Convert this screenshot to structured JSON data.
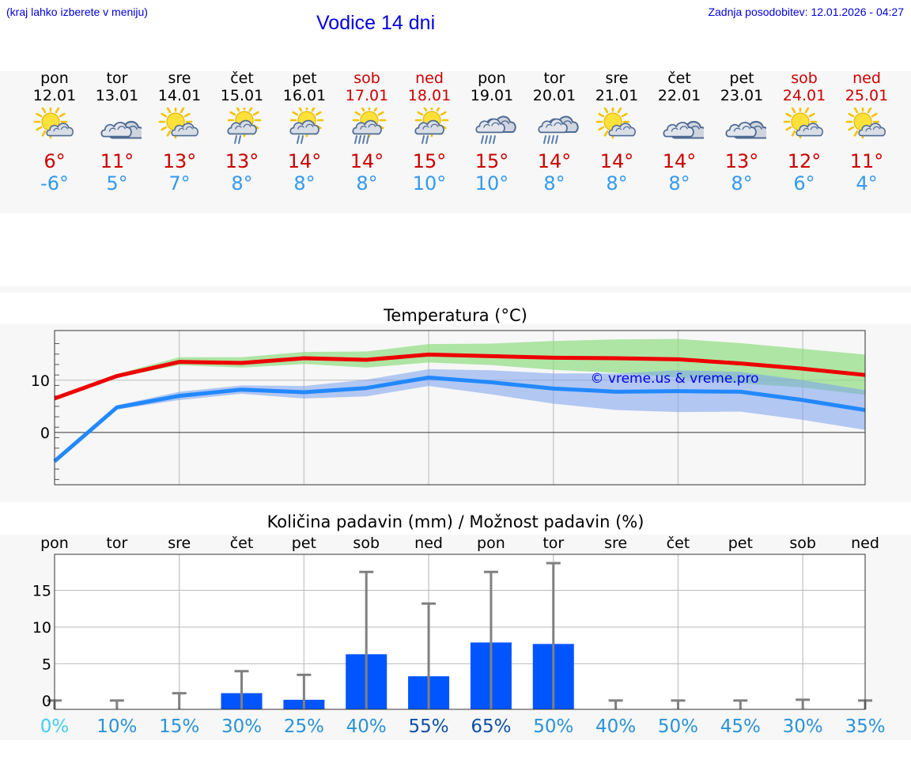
{
  "header": {
    "left_note": "(kraj lahko izberete v meniju)",
    "title": "Vodice 14 dni",
    "updated": "Zadnja posodobitev: 12.01.2026 - 04:27"
  },
  "days": [
    {
      "name": "pon",
      "date": "12.01",
      "weekend": false,
      "icon": "sun-cloud-icon",
      "tmax": "6°",
      "tmin": "-6°"
    },
    {
      "name": "tor",
      "date": "13.01",
      "weekend": false,
      "icon": "cloudy-icon",
      "tmax": "11°",
      "tmin": "5°"
    },
    {
      "name": "sre",
      "date": "14.01",
      "weekend": false,
      "icon": "sun-cloud-icon",
      "tmax": "13°",
      "tmin": "7°"
    },
    {
      "name": "čet",
      "date": "15.01",
      "weekend": false,
      "icon": "sun-cloud-light-rain-icon",
      "tmax": "13°",
      "tmin": "8°"
    },
    {
      "name": "pet",
      "date": "16.01",
      "weekend": false,
      "icon": "sun-cloud-light-rain-icon",
      "tmax": "14°",
      "tmin": "8°"
    },
    {
      "name": "sob",
      "date": "17.01",
      "weekend": true,
      "icon": "sun-cloud-rain-icon",
      "tmax": "14°",
      "tmin": "8°"
    },
    {
      "name": "ned",
      "date": "18.01",
      "weekend": true,
      "icon": "sun-cloud-light-rain-icon",
      "tmax": "15°",
      "tmin": "10°"
    },
    {
      "name": "pon",
      "date": "19.01",
      "weekend": false,
      "icon": "cloud-rain-icon",
      "tmax": "15°",
      "tmin": "10°"
    },
    {
      "name": "tor",
      "date": "20.01",
      "weekend": false,
      "icon": "cloud-rain-icon",
      "tmax": "14°",
      "tmin": "8°"
    },
    {
      "name": "sre",
      "date": "21.01",
      "weekend": false,
      "icon": "sun-cloud-icon",
      "tmax": "14°",
      "tmin": "8°"
    },
    {
      "name": "čet",
      "date": "22.01",
      "weekend": false,
      "icon": "cloudy-icon",
      "tmax": "14°",
      "tmin": "8°"
    },
    {
      "name": "pet",
      "date": "23.01",
      "weekend": false,
      "icon": "cloudy-icon",
      "tmax": "13°",
      "tmin": "8°"
    },
    {
      "name": "sob",
      "date": "24.01",
      "weekend": true,
      "icon": "sun-cloud-icon",
      "tmax": "12°",
      "tmin": "6°"
    },
    {
      "name": "ned",
      "date": "25.01",
      "weekend": true,
      "icon": "sun-cloud-icon",
      "tmax": "11°",
      "tmin": "4°"
    }
  ],
  "chart_data": [
    {
      "type": "line",
      "title": "Temperatura (°C)",
      "x": [
        0,
        1,
        2,
        3,
        4,
        5,
        6,
        7,
        8,
        9,
        10,
        11,
        12,
        13
      ],
      "yticks": [
        "10",
        "0"
      ],
      "ylim": [
        -10,
        19.5
      ],
      "watermark": "© vreme.us & vreme.pro",
      "series": [
        {
          "name": "max",
          "color": "#ee0000",
          "values": [
            6.5,
            10.8,
            13.5,
            13.3,
            14.2,
            13.9,
            14.9,
            14.6,
            14.3,
            14.2,
            14.0,
            13.2,
            12.2,
            11.0
          ],
          "band_low": [
            6.1,
            10.5,
            12.9,
            12.4,
            13.1,
            12.4,
            13.4,
            12.9,
            12.0,
            11.4,
            10.5,
            9.4,
            8.6,
            7.2
          ],
          "band_high": [
            6.9,
            11.2,
            14.4,
            14.4,
            15.4,
            15.5,
            16.9,
            17.0,
            17.5,
            17.8,
            17.9,
            17.1,
            16.0,
            14.9
          ]
        },
        {
          "name": "min",
          "color": "#2288ff",
          "values": [
            -5.5,
            4.8,
            7.0,
            8.2,
            7.7,
            8.5,
            10.5,
            9.6,
            8.4,
            7.8,
            7.9,
            7.8,
            6.2,
            4.3
          ],
          "band_low": [
            -5.9,
            4.4,
            6.2,
            7.4,
            6.5,
            6.9,
            8.9,
            7.3,
            5.5,
            4.3,
            3.9,
            4.0,
            2.4,
            0.5
          ],
          "band_high": [
            -5.1,
            5.2,
            7.8,
            9.0,
            8.9,
            10.1,
            12.1,
            11.9,
            11.3,
            11.3,
            11.9,
            11.6,
            10.0,
            8.1
          ]
        }
      ]
    },
    {
      "type": "bar",
      "title": "Količina padavin (mm) / Možnost padavin (%)",
      "categories": [
        "pon",
        "tor",
        "sre",
        "čet",
        "pet",
        "sob",
        "ned",
        "pon",
        "tor",
        "sre",
        "čet",
        "pet",
        "sob",
        "ned"
      ],
      "values": [
        0,
        0,
        0,
        1.0,
        0.1,
        6.3,
        3.3,
        7.9,
        7.7,
        0,
        0,
        0,
        0,
        0
      ],
      "error_high": [
        0,
        0,
        1.0,
        4.0,
        3.5,
        17.5,
        13.2,
        17.5,
        18.7,
        0,
        0,
        0,
        0.1,
        0
      ],
      "probability": [
        "0%",
        "10%",
        "15%",
        "30%",
        "25%",
        "40%",
        "55%",
        "65%",
        "50%",
        "40%",
        "50%",
        "45%",
        "30%",
        "35%"
      ],
      "probability_values": [
        0,
        10,
        15,
        30,
        25,
        40,
        55,
        65,
        50,
        40,
        50,
        45,
        30,
        35
      ],
      "yticks": [
        "15",
        "10",
        "5",
        "0"
      ],
      "ylim": [
        -1.2,
        19.9
      ],
      "bar_color": "#0055ff",
      "error_color": "#808080"
    }
  ]
}
